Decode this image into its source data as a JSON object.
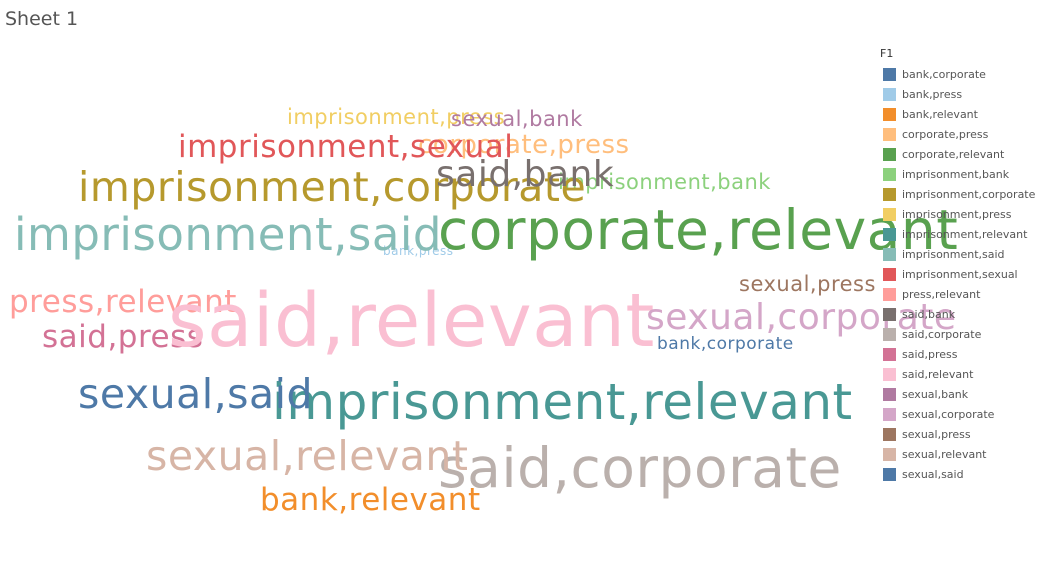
{
  "sheet": {
    "title": "Sheet 1"
  },
  "legend": {
    "title": "F1"
  },
  "chart_data": {
    "type": "word_cloud",
    "title": "",
    "legend_field": "F1",
    "legend_position": "right",
    "categories": [
      {
        "label": "bank,corporate",
        "color": "#4e79a7",
        "size": 2
      },
      {
        "label": "bank,press",
        "color": "#a0cbe8",
        "size": 1
      },
      {
        "label": "bank,relevant",
        "color": "#f28e2b",
        "size": 5
      },
      {
        "label": "corporate,press",
        "color": "#ffbe7d",
        "size": 4
      },
      {
        "label": "corporate,relevant",
        "color": "#59a14f",
        "size": 10
      },
      {
        "label": "imprisonment,bank",
        "color": "#8cd17d",
        "size": 3
      },
      {
        "label": "imprisonment,corporate",
        "color": "#b6992d",
        "size": 7
      },
      {
        "label": "imprisonment,press",
        "color": "#f1ce63",
        "size": 3
      },
      {
        "label": "imprisonment,relevant",
        "color": "#499894",
        "size": 9
      },
      {
        "label": "imprisonment,said",
        "color": "#86bcb6",
        "size": 8
      },
      {
        "label": "imprisonment,sexual",
        "color": "#e15759",
        "size": 5
      },
      {
        "label": "press,relevant",
        "color": "#ff9d9a",
        "size": 5
      },
      {
        "label": "said,bank",
        "color": "#79706e",
        "size": 6
      },
      {
        "label": "said,corporate",
        "color": "#bab0ac",
        "size": 10
      },
      {
        "label": "said,press",
        "color": "#d37295",
        "size": 5
      },
      {
        "label": "said,relevant",
        "color": "#fabfd2",
        "size": 14
      },
      {
        "label": "sexual,bank",
        "color": "#b07aa1",
        "size": 3
      },
      {
        "label": "sexual,corporate",
        "color": "#d4a6c8",
        "size": 6
      },
      {
        "label": "sexual,press",
        "color": "#9d7660",
        "size": 3
      },
      {
        "label": "sexual,relevant",
        "color": "#d7b5a6",
        "size": 7
      },
      {
        "label": "sexual,said",
        "color": "#4e79a7",
        "size": 7
      }
    ]
  }
}
